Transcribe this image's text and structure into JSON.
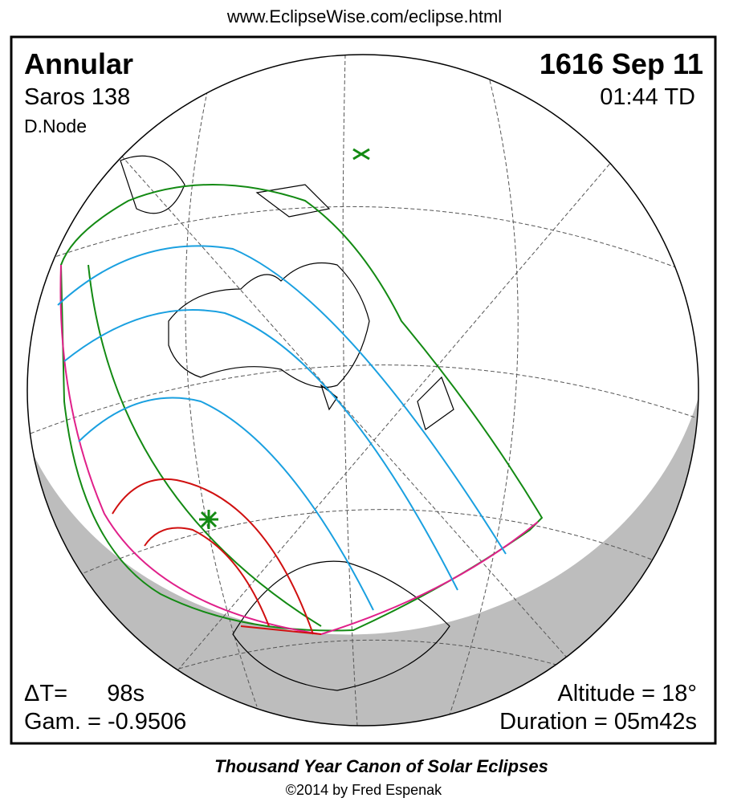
{
  "header": {
    "url": "www.EclipseWise.com/eclipse.html"
  },
  "panel": {
    "eclipse_type": "Annular",
    "saros": "Saros 138",
    "node": "D.Node",
    "date": "1616 Sep 11",
    "time": "01:44 TD",
    "delta_t_label": "ΔT=",
    "delta_t_value": "98s",
    "gamma": "Gam. = -0.9506",
    "altitude": "Altitude = 18°",
    "duration": "Duration = 05m42s"
  },
  "footer": {
    "title": "Thousand Year Canon of Solar Eclipses",
    "credit": "©2014 by Fred Espenak"
  }
}
